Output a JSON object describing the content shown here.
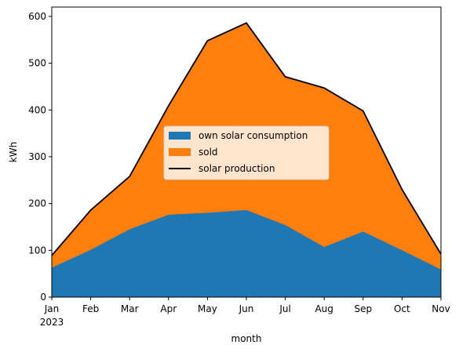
{
  "chart_data": {
    "type": "area",
    "stacked": true,
    "x": [
      "Jan",
      "Feb",
      "Mar",
      "Apr",
      "May",
      "Jun",
      "Jul",
      "Aug",
      "Sep",
      "Oct",
      "Nov"
    ],
    "x_year_label": "2023",
    "xlabel": "month",
    "ylabel": "kWh",
    "ylim": [
      0,
      620
    ],
    "yticks": [
      0,
      100,
      200,
      300,
      400,
      500,
      600
    ],
    "grid": false,
    "legend_position": "center",
    "series": [
      {
        "name": "own solar consumption",
        "kind": "area",
        "color": "#1f77b4",
        "values": [
          64,
          102,
          146,
          177,
          181,
          187,
          155,
          108,
          141,
          101,
          60
        ]
      },
      {
        "name": "sold",
        "kind": "area",
        "color": "#ff7f0e",
        "values": [
          25,
          84,
          112,
          232,
          367,
          399,
          316,
          339,
          257,
          129,
          32
        ]
      },
      {
        "name": "solar production",
        "kind": "line",
        "color": "#000000",
        "values": [
          89,
          186,
          258,
          409,
          548,
          586,
          471,
          447,
          398,
          230,
          92
        ]
      }
    ]
  }
}
